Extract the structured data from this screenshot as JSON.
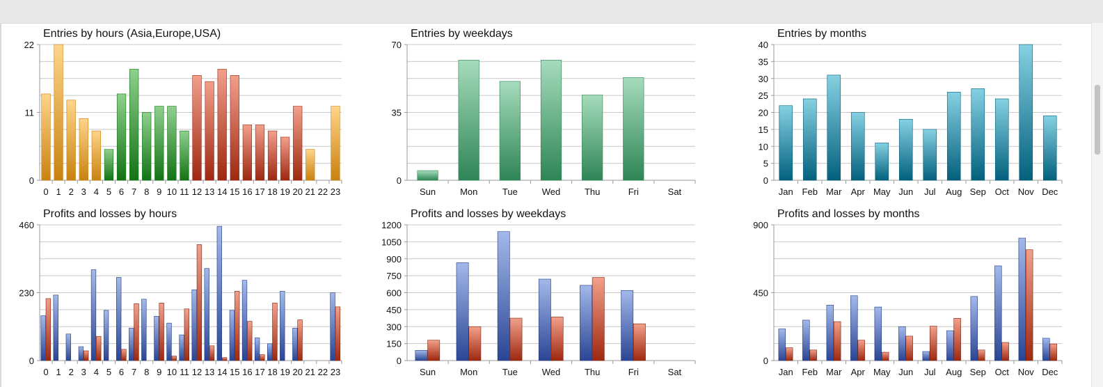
{
  "colors": {
    "asia": [
      "#ffd48a",
      "#c88210"
    ],
    "europe": [
      "#8fd08f",
      "#137313"
    ],
    "usa": [
      "#f29f8c",
      "#9e2810"
    ],
    "weekday": [
      "#a6dcbc",
      "#2e8555"
    ],
    "month": [
      "#86d1e3",
      "#03607c"
    ],
    "profit": [
      "#a3b9ea",
      "#2a4594"
    ],
    "loss": [
      "#f2a08b",
      "#9e2810"
    ]
  },
  "charts": [
    {
      "title": "Entries by hours (Asia,Europe,USA)",
      "chart_data": {
        "type": "bar",
        "title": "Entries by hours (Asia,Europe,USA)",
        "categories": [
          "0",
          "1",
          "2",
          "3",
          "4",
          "5",
          "6",
          "7",
          "8",
          "9",
          "10",
          "11",
          "12",
          "13",
          "14",
          "15",
          "16",
          "17",
          "18",
          "19",
          "20",
          "21",
          "22",
          "23"
        ],
        "values": [
          14,
          22,
          13,
          10,
          8,
          5,
          14,
          18,
          11,
          12,
          12,
          8,
          17,
          16,
          18,
          17,
          9,
          9,
          8,
          7,
          12,
          5,
          0,
          12
        ],
        "bar_color_groups": [
          "asia",
          "asia",
          "asia",
          "asia",
          "asia",
          "europe",
          "europe",
          "europe",
          "europe",
          "europe",
          "europe",
          "europe",
          "usa",
          "usa",
          "usa",
          "usa",
          "usa",
          "usa",
          "usa",
          "usa",
          "usa",
          "asia",
          "asia",
          "asia"
        ],
        "yticks": [
          0,
          11,
          22
        ],
        "ylim": [
          0,
          22
        ],
        "grid": true
      }
    },
    {
      "title": "Entries by weekdays",
      "chart_data": {
        "type": "bar",
        "title": "Entries by weekdays",
        "categories": [
          "Sun",
          "Mon",
          "Tue",
          "Wed",
          "Thu",
          "Fri",
          "Sat"
        ],
        "values": [
          5,
          62,
          51,
          62,
          44,
          53,
          0
        ],
        "yticks": [
          0,
          35,
          70
        ],
        "ylim": [
          0,
          70
        ],
        "grid": true
      }
    },
    {
      "title": "Entries by months",
      "chart_data": {
        "type": "bar",
        "title": "Entries by months",
        "categories": [
          "Jan",
          "Feb",
          "Mar",
          "Apr",
          "May",
          "Jun",
          "Jul",
          "Aug",
          "Sep",
          "Oct",
          "Nov",
          "Dec"
        ],
        "values": [
          22,
          24,
          31,
          20,
          11,
          18,
          15,
          26,
          27,
          24,
          40,
          19
        ],
        "yticks": [
          0,
          5,
          10,
          15,
          20,
          25,
          30,
          35,
          40
        ],
        "ylim": [
          0,
          40
        ],
        "grid": true
      }
    },
    {
      "title": "Profits and losses by hours",
      "chart_data": {
        "type": "bar",
        "title": "Profits and losses by hours",
        "categories": [
          "0",
          "1",
          "2",
          "3",
          "4",
          "5",
          "6",
          "7",
          "8",
          "9",
          "10",
          "11",
          "12",
          "13",
          "14",
          "15",
          "16",
          "17",
          "18",
          "19",
          "20",
          "21",
          "22",
          "23"
        ],
        "series": [
          {
            "values": [
              152,
              222,
              90,
              47,
              308,
              170,
              282,
              110,
              208,
              150,
              127,
              87,
              240,
              312,
              455,
              170,
              272,
              77,
              57,
              235,
              110,
              0,
              0,
              230
            ]
          },
          {
            "values": [
              210,
              0,
              0,
              33,
              82,
              0,
              38,
              193,
              0,
              195,
              15,
              175,
              393,
              50,
              10,
              235,
              133,
              20,
              195,
              0,
              138,
              0,
              0,
              182
            ]
          }
        ],
        "yticks": [
          0,
          230,
          460
        ],
        "ylim": [
          0,
          460
        ],
        "grid": true
      }
    },
    {
      "title": "Profits and losses by weekdays",
      "chart_data": {
        "type": "bar",
        "title": "Profits and losses by weekdays",
        "categories": [
          "Sun",
          "Mon",
          "Tue",
          "Wed",
          "Thu",
          "Fri",
          "Sat"
        ],
        "series": [
          {
            "values": [
              90,
              865,
              1140,
              720,
              665,
              620,
              0
            ]
          },
          {
            "values": [
              180,
              300,
              375,
              385,
              735,
              325,
              0
            ]
          }
        ],
        "yticks": [
          0,
          150,
          300,
          450,
          600,
          750,
          900,
          1050,
          1200
        ],
        "ylim": [
          0,
          1200
        ],
        "grid": true
      }
    },
    {
      "title": "Profits and losses by months",
      "chart_data": {
        "type": "bar",
        "title": "Profits and losses by months",
        "categories": [
          "Jan",
          "Feb",
          "Mar",
          "Apr",
          "May",
          "Jun",
          "Jul",
          "Aug",
          "Sep",
          "Oct",
          "Nov",
          "Dec"
        ],
        "series": [
          {
            "values": [
              210,
              268,
              368,
              430,
              355,
              225,
              60,
              198,
              425,
              628,
              812,
              148
            ]
          },
          {
            "values": [
              85,
              70,
              258,
              135,
              55,
              162,
              228,
              280,
              70,
              120,
              735,
              110
            ]
          }
        ],
        "yticks": [
          0,
          450,
          900
        ],
        "ylim": [
          0,
          900
        ],
        "grid": true
      }
    }
  ]
}
